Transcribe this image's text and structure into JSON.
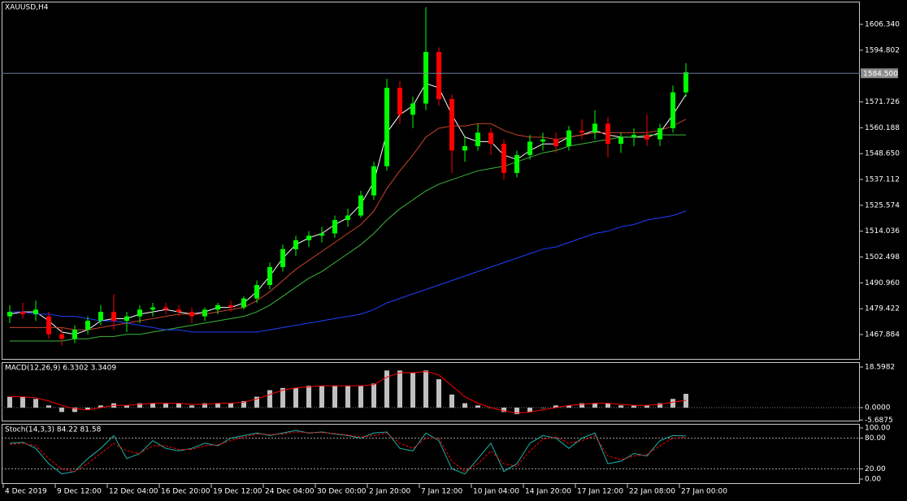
{
  "chart_data": [
    {
      "type": "candlestick",
      "title": "XAUUSD,H4",
      "x": [
        2,
        6,
        10,
        14,
        18,
        22,
        26,
        30,
        34,
        38,
        42,
        46,
        50,
        54,
        58,
        62,
        66,
        70,
        74,
        78,
        82,
        86,
        90,
        94,
        98,
        102,
        106,
        110,
        114,
        118,
        122,
        126,
        130,
        134,
        138,
        142,
        146,
        150,
        154,
        158,
        162,
        166,
        170,
        174,
        178,
        182,
        186,
        190,
        194,
        198,
        202,
        206,
        210
      ],
      "open": [
        1476,
        1478,
        1477,
        1476,
        1468,
        1466,
        1470,
        1474,
        1478,
        1474,
        1476,
        1479,
        1480,
        1479,
        1478,
        1476,
        1479,
        1481,
        1480,
        1484,
        1490,
        1498,
        1506,
        1510,
        1512,
        1513,
        1519,
        1521,
        1530,
        1543,
        1578,
        1566,
        1571,
        1594,
        1573,
        1550,
        1552,
        1558,
        1553,
        1540,
        1548,
        1554,
        1555,
        1552,
        1559,
        1558,
        1562,
        1553,
        1556,
        1557,
        1555,
        1560,
        1576
      ],
      "high": [
        1481,
        1482,
        1483,
        1478,
        1471,
        1472,
        1476,
        1481,
        1486,
        1478,
        1481,
        1482,
        1482,
        1481,
        1480,
        1480,
        1482,
        1483,
        1485,
        1492,
        1500,
        1508,
        1512,
        1514,
        1516,
        1521,
        1524,
        1532,
        1545,
        1582,
        1581,
        1574,
        1614,
        1596,
        1575,
        1556,
        1562,
        1560,
        1555,
        1550,
        1557,
        1558,
        1558,
        1561,
        1564,
        1568,
        1565,
        1558,
        1560,
        1566,
        1562,
        1579,
        1589
      ],
      "low": [
        1473,
        1475,
        1474,
        1466,
        1463,
        1464,
        1468,
        1472,
        1470,
        1469,
        1473,
        1476,
        1477,
        1476,
        1473,
        1474,
        1477,
        1478,
        1479,
        1482,
        1488,
        1496,
        1503,
        1507,
        1509,
        1511,
        1516,
        1520,
        1528,
        1541,
        1562,
        1560,
        1568,
        1570,
        1540,
        1545,
        1550,
        1548,
        1537,
        1538,
        1546,
        1550,
        1549,
        1550,
        1555,
        1555,
        1547,
        1549,
        1552,
        1552,
        1552,
        1558,
        1574
      ],
      "close": [
        1478,
        1477,
        1479,
        1468,
        1466,
        1470,
        1474,
        1478,
        1474,
        1476,
        1479,
        1480,
        1479,
        1478,
        1476,
        1479,
        1481,
        1480,
        1484,
        1490,
        1498,
        1506,
        1510,
        1512,
        1513,
        1519,
        1521,
        1530,
        1543,
        1578,
        1566,
        1571,
        1594,
        1573,
        1550,
        1552,
        1558,
        1553,
        1540,
        1548,
        1554,
        1555,
        1552,
        1559,
        1558,
        1562,
        1553,
        1556,
        1557,
        1555,
        1560,
        1576,
        1585
      ],
      "up_color": "#00ff00",
      "down_color": "#ff0000",
      "series": [
        {
          "color": "#ffffff",
          "values": [
            1477,
            1478,
            1478,
            1474,
            1469,
            1468,
            1470,
            1474,
            1475,
            1475,
            1477,
            1478,
            1479,
            1478,
            1477,
            1478,
            1480,
            1480,
            1482,
            1487,
            1494,
            1502,
            1508,
            1511,
            1513,
            1517,
            1520,
            1526,
            1536,
            1558,
            1566,
            1570,
            1580,
            1578,
            1566,
            1556,
            1554,
            1554,
            1548,
            1546,
            1550,
            1553,
            1553,
            1556,
            1557,
            1559,
            1557,
            1556,
            1556,
            1556,
            1558,
            1566,
            1575
          ]
        },
        {
          "color": "#c8442c",
          "values": [
            1471,
            1471,
            1471,
            1471,
            1471,
            1470,
            1470,
            1471,
            1472,
            1473,
            1474,
            1475,
            1476,
            1477,
            1477,
            1477,
            1478,
            1479,
            1480,
            1483,
            1487,
            1492,
            1497,
            1501,
            1505,
            1509,
            1513,
            1517,
            1523,
            1533,
            1541,
            1548,
            1556,
            1560,
            1561,
            1561,
            1562,
            1562,
            1559,
            1557,
            1556,
            1556,
            1555,
            1556,
            1557,
            1558,
            1558,
            1558,
            1558,
            1558,
            1559,
            1561,
            1564
          ]
        },
        {
          "color": "#3cb83c",
          "values": [
            1465,
            1465,
            1465,
            1465,
            1465,
            1466,
            1466,
            1467,
            1467,
            1468,
            1468,
            1469,
            1470,
            1471,
            1472,
            1473,
            1474,
            1475,
            1476,
            1478,
            1481,
            1485,
            1489,
            1493,
            1496,
            1500,
            1504,
            1508,
            1513,
            1519,
            1524,
            1528,
            1532,
            1535,
            1537,
            1539,
            1541,
            1542,
            1543,
            1545,
            1547,
            1549,
            1550,
            1552,
            1553,
            1554,
            1555,
            1556,
            1556,
            1557,
            1557,
            1557,
            1557
          ]
        },
        {
          "color": "#1f3fff",
          "values": [
            1478,
            1478,
            1477,
            1477,
            1476,
            1476,
            1475,
            1474,
            1474,
            1473,
            1472,
            1471,
            1470,
            1470,
            1469,
            1469,
            1469,
            1469,
            1469,
            1469,
            1470,
            1471,
            1472,
            1473,
            1474,
            1475,
            1476,
            1477,
            1479,
            1482,
            1484,
            1486,
            1488,
            1490,
            1492,
            1494,
            1496,
            1498,
            1500,
            1502,
            1504,
            1506,
            1507,
            1509,
            1511,
            1513,
            1514,
            1516,
            1517,
            1519,
            1520,
            1521,
            1523
          ]
        }
      ],
      "current_price": {
        "value": 1584.5,
        "label": "1584.500"
      },
      "xlim": [
        -0.5,
        263.5
      ],
      "ylim": [
        1456.65,
        1616.49
      ],
      "yticks": [
        {
          "value": 1606.34,
          "label": "1606.340"
        },
        1594.802,
        1571.726,
        1560.188,
        {
          "value": 1548.65,
          "label": "1548.650"
        },
        1537.112,
        1525.574,
        1514.036,
        1502.498,
        {
          "value": 1490.96,
          "label": "1490.960"
        },
        1479.422,
        1467.884
      ]
    },
    {
      "type": "bar",
      "title": "MACD(12,26,9) 6.3302 3.3409",
      "color": "#c0c0c0",
      "values": [
        5,
        5,
        4,
        1,
        -2,
        -2,
        -1,
        1,
        2,
        1,
        2,
        2,
        2,
        2,
        1,
        2,
        2,
        2,
        3,
        5,
        8,
        9,
        9,
        10,
        10,
        10,
        10,
        10,
        11,
        17,
        17,
        16,
        17,
        13,
        6,
        2,
        1,
        0,
        -2,
        -3,
        -2,
        0,
        1,
        1,
        2,
        2,
        2,
        1,
        1,
        1,
        2,
        4,
        6.3302
      ],
      "line": {
        "color": "#ff0000",
        "values": [
          5,
          5,
          4.5,
          3,
          1,
          -0.5,
          -1,
          0,
          1,
          1,
          1.5,
          2,
          2,
          2,
          1.5,
          1.5,
          2,
          2,
          2.5,
          4,
          6,
          8,
          9,
          9.5,
          10,
          10,
          10,
          10,
          10.5,
          14,
          16,
          16,
          16.5,
          15,
          10,
          5,
          2,
          0,
          -1.5,
          -2.5,
          -2,
          -1,
          0,
          1,
          1.5,
          2,
          2,
          1.5,
          1,
          1,
          1.5,
          2.5,
          3.3409
        ]
      },
      "levels": [
        0
      ],
      "ylim": [
        -6.32,
        20.83
      ],
      "yticks": [
        18.5982,
        {
          "value": 0,
          "label": "0.0000"
        },
        -5.6875
      ]
    },
    {
      "type": "line",
      "title": "Stoch(14,3,3) 84.22 81.58",
      "series": [
        {
          "color": "#20b2aa",
          "dashed": false,
          "values": [
            70,
            72,
            60,
            30,
            10,
            15,
            40,
            60,
            85,
            40,
            50,
            75,
            60,
            55,
            60,
            70,
            65,
            80,
            85,
            90,
            85,
            90,
            95,
            90,
            92,
            88,
            85,
            80,
            90,
            92,
            60,
            55,
            90,
            75,
            20,
            10,
            40,
            70,
            15,
            30,
            70,
            85,
            80,
            60,
            80,
            90,
            30,
            35,
            50,
            45,
            75,
            85,
            84.22
          ]
        },
        {
          "color": "#ff0000",
          "dashed": true,
          "values": [
            68,
            70,
            65,
            40,
            20,
            15,
            30,
            50,
            70,
            55,
            50,
            65,
            65,
            58,
            58,
            65,
            67,
            75,
            82,
            88,
            87,
            88,
            92,
            91,
            91,
            89,
            86,
            82,
            85,
            90,
            70,
            60,
            80,
            80,
            35,
            15,
            30,
            55,
            30,
            25,
            55,
            78,
            82,
            70,
            75,
            85,
            45,
            38,
            45,
            48,
            65,
            80,
            81.58
          ]
        }
      ],
      "levels": [
        80,
        20
      ],
      "ylim": [
        -9.5,
        107.9
      ],
      "yticks": [
        {
          "value": 100,
          "label": "100.00"
        },
        {
          "value": 80,
          "label": "80.00"
        },
        {
          "value": 20,
          "label": "20.00"
        },
        {
          "value": 0,
          "label": "0.00"
        }
      ],
      "xticks": [
        {
          "value": 0,
          "label": "4 Dec 2019"
        },
        {
          "value": 16,
          "label": "9 Dec 12:00"
        },
        {
          "value": 32,
          "label": "12 Dec 04:00"
        },
        {
          "value": 48,
          "label": "16 Dec 20:00"
        },
        {
          "value": 64,
          "label": "19 Dec 12:00"
        },
        {
          "value": 80,
          "label": "24 Dec 04:00"
        },
        {
          "value": 96,
          "label": "30 Dec 00:00"
        },
        {
          "value": 112,
          "label": "2 Jan 20:00"
        },
        {
          "value": 128,
          "label": "7 Jan 12:00"
        },
        {
          "value": 144,
          "label": "10 Jan 04:00"
        },
        {
          "value": 160,
          "label": "14 Jan 20:00"
        },
        {
          "value": 176,
          "label": "17 Jan 12:00"
        },
        {
          "value": 192,
          "label": "22 Jan 08:00"
        },
        {
          "value": 208,
          "label": "27 Jan 00:00"
        }
      ]
    }
  ]
}
